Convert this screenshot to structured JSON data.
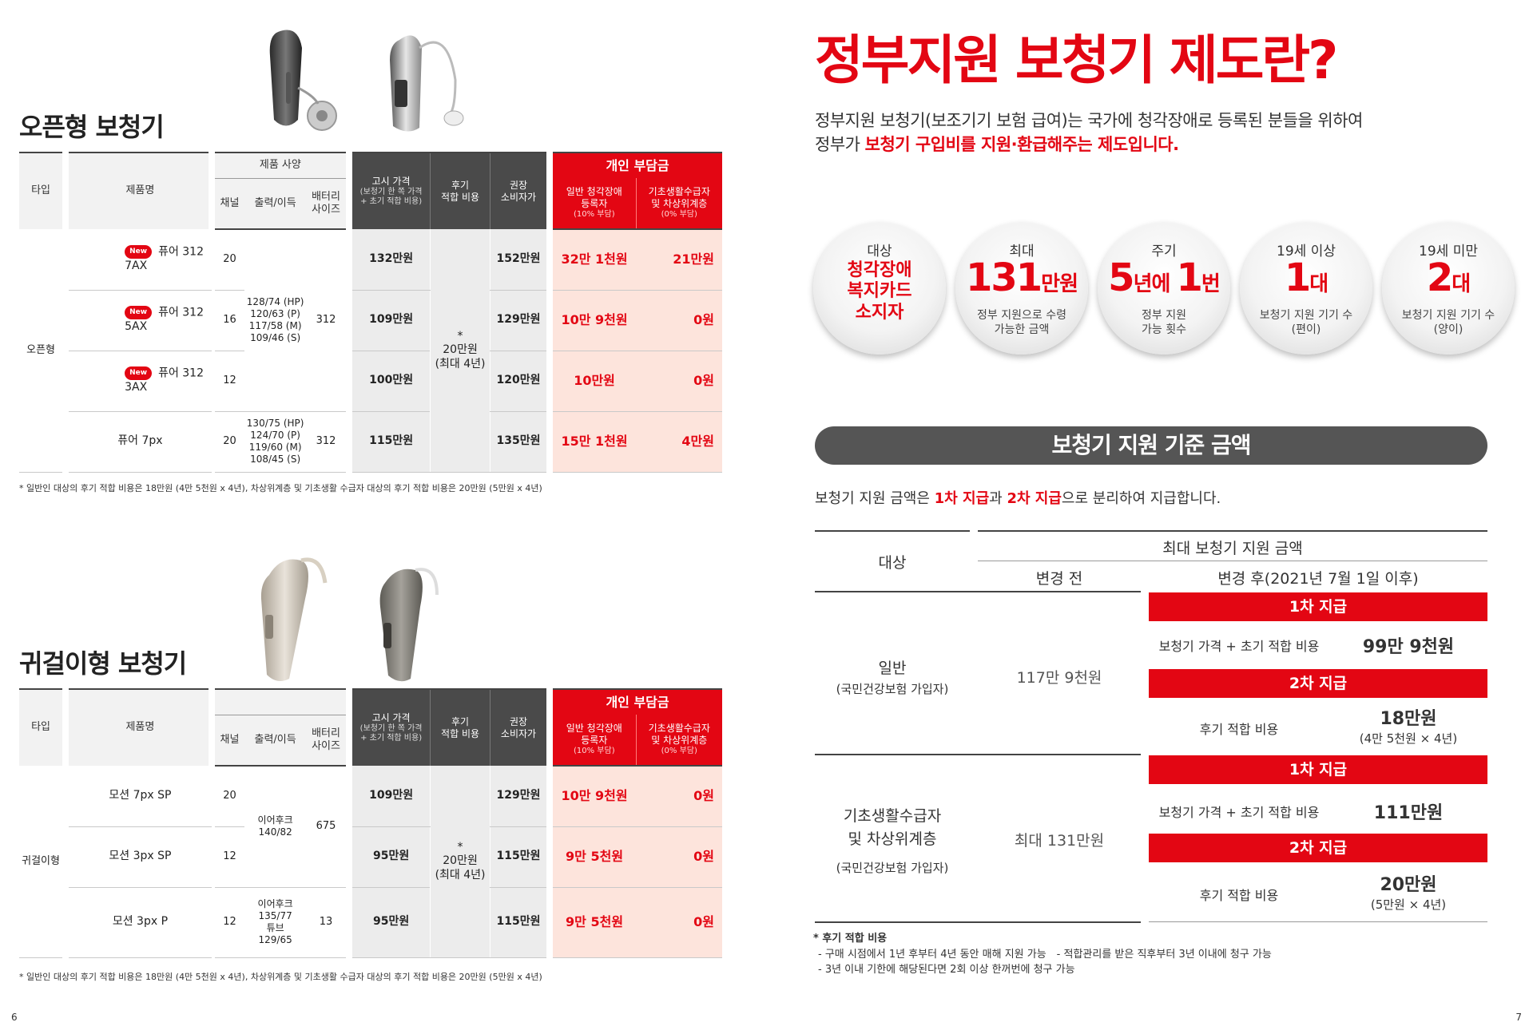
{
  "left": {
    "section1_title": "오픈형 보청기",
    "section2_title": "귀걸이형 보청기",
    "headers": {
      "type": "타입",
      "product": "제품명",
      "spec": "제품 사양",
      "channel": "채널",
      "output": "출력/이득",
      "battery": "배터리\n사이즈",
      "notice_price": "고시 가격",
      "notice_price_sub": "(보청기 한 쪽 가격\n+ 초기 적합 비용)",
      "later_fitting": "후기\n적합 비용",
      "recommended": "권장\n소비자가",
      "personal": "개인 부담금",
      "general": "일반 청각장애\n등록자",
      "general_sub": "(10% 부담)",
      "basic": "기초생활수급자\n및 차상위계층",
      "basic_sub": "(0% 부담)"
    },
    "new_label": "New",
    "open_type": {
      "type_label": "오픈형",
      "shared_output": "128/74 (HP)\n120/63 (P)\n117/58 (M)\n109/46 (S)",
      "shared_battery": "312",
      "fitting": "*\n20만원\n(최대 4년)",
      "rows": [
        {
          "name": "퓨어 312 7AX",
          "new": true,
          "channel": "20",
          "price": "132만원",
          "recommended": "152만원",
          "general": "32만 1천원",
          "basic": "21만원"
        },
        {
          "name": "퓨어 312 5AX",
          "new": true,
          "channel": "16",
          "price": "109만원",
          "recommended": "129만원",
          "general": "10만 9천원",
          "basic": "0원"
        },
        {
          "name": "퓨어 312 3AX",
          "new": true,
          "channel": "12",
          "price": "100만원",
          "recommended": "120만원",
          "general": "10만원",
          "basic": "0원"
        },
        {
          "name": "퓨어 7px",
          "new": false,
          "channel": "20",
          "output": "130/75 (HP)\n124/70 (P)\n119/60 (M)\n108/45 (S)",
          "battery": "312",
          "price": "115만원",
          "recommended": "135만원",
          "general": "15만 1천원",
          "basic": "4만원"
        }
      ]
    },
    "bte_type": {
      "type_label": "귀걸이형",
      "shared_output": "이어후크\n140/82",
      "shared_battery": "675",
      "fitting": "*\n20만원\n(최대 4년)",
      "rows": [
        {
          "name": "모션 7px SP",
          "channel": "20",
          "price": "109만원",
          "recommended": "129만원",
          "general": "10만 9천원",
          "basic": "0원"
        },
        {
          "name": "모션 3px SP",
          "channel": "12",
          "price": "95만원",
          "recommended": "115만원",
          "general": "9만 5천원",
          "basic": "0원"
        },
        {
          "name": "모션 3px P",
          "channel": "12",
          "output": "이어후크\n135/77\n튜브\n129/65",
          "battery": "13",
          "price": "95만원",
          "recommended": "115만원",
          "general": "9만 5천원",
          "basic": "0원"
        }
      ]
    },
    "footnote": "* 일반인 대상의 후기 적합 비용은 18만원 (4만 5천원 x 4년), 차상위계층 및 기초생활 수급자 대상의 후기 적합 비용은 20만원 (5만원 x 4년)",
    "page_number": "6"
  },
  "right": {
    "title": "정부지원 보청기 제도란?",
    "intro_line1": "정부지원 보청기(보조기기 보험 급여)는 국가에 청각장애로 등록된 분들을 위하여",
    "intro_line2_prefix": "정부가 ",
    "intro_line2_red": "보청기 구입비를 지원·환급해주는 제도입니다.",
    "circles": [
      {
        "top": "대상",
        "bold": "청각장애\n복지카드\n소지자"
      },
      {
        "top": "최대",
        "big": "131",
        "unit": "만원",
        "sub": "정부 지원으로 수령\n가능한 금액"
      },
      {
        "top": "주기",
        "big": "5",
        "unit": "년에 ",
        "big2": "1",
        "unit2": "번",
        "sub": "정부 지원\n가능 횟수"
      },
      {
        "top": "19세 이상",
        "big": "1",
        "unit": "대",
        "sub": "보청기 지원 기기 수\n(편이)"
      },
      {
        "top": "19세 미만",
        "big": "2",
        "unit": "대",
        "sub": "보청기 지원 기기 수\n(양이)"
      }
    ],
    "banner": "보청기 지원 기준 금액",
    "desc_prefix": "보청기 지원 금액은 ",
    "desc_red1": "1차 지급",
    "desc_mid": "과 ",
    "desc_red2": "2차 지급",
    "desc_suffix": "으로 분리하여 지급합니다.",
    "support": {
      "target": "대상",
      "max_amount": "최대 보청기 지원 금액",
      "before": "변경 전",
      "after": "변경 후(2021년 7월 1일 이후)",
      "first": "1차 지급",
      "second": "2차 지급",
      "item_price": "보청기 가격 + 초기 적합 비용",
      "item_later": "후기 적합 비용",
      "general": {
        "label": "일반",
        "sub": "(국민건강보험 가입자)",
        "before": "117만 9천원",
        "first_amount": "99만 9천원",
        "second_amount": "18만원",
        "second_sub": "(4만 5천원 × 4년)"
      },
      "basic": {
        "label": "기초생활수급자\n및 차상위계층",
        "sub": "(국민건강보험 가입자)",
        "before": "최대 131만원",
        "first_amount": "111만원",
        "second_amount": "20만원",
        "second_sub": "(5만원 × 4년)"
      }
    },
    "notes": {
      "title": "* 후기 적합 비용",
      "line1": "- 구매 시점에서 1년 후부터 4년 동안 매해 지원 가능　- 적합관리를 받은 직후부터 3년 이내에 청구 가능",
      "line2": "- 3년 이내 기한에 해당된다면 2회 이상 한꺼번에 청구 가능"
    },
    "page_number": "7"
  }
}
